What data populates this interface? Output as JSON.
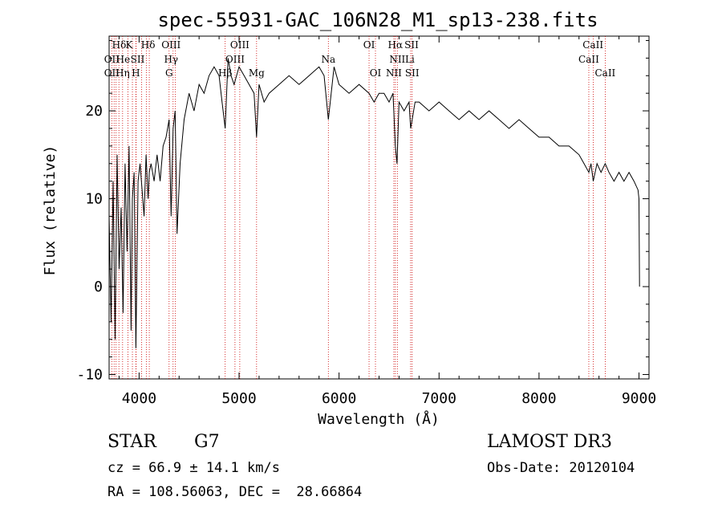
{
  "chart_data": {
    "type": "line",
    "title": "spec-55931-GAC_106N28_M1_sp13-238.fits",
    "xlabel": "Wavelength (Å)",
    "ylabel": "Flux (relative)",
    "xlim": [
      3700,
      9100
    ],
    "ylim": [
      -10.5,
      28.5
    ],
    "x_ticks": [
      4000,
      5000,
      6000,
      7000,
      8000,
      9000
    ],
    "y_ticks": [
      -10,
      0,
      10,
      20
    ],
    "series": [
      {
        "name": "flux",
        "x": [
          3700,
          3720,
          3740,
          3760,
          3780,
          3800,
          3820,
          3840,
          3860,
          3880,
          3900,
          3920,
          3933,
          3950,
          3968,
          3990,
          4010,
          4030,
          4050,
          4070,
          4090,
          4102,
          4120,
          4150,
          4180,
          4210,
          4240,
          4270,
          4300,
          4320,
          4340,
          4360,
          4380,
          4410,
          4450,
          4500,
          4550,
          4600,
          4650,
          4700,
          4750,
          4800,
          4830,
          4861,
          4890,
          4920,
          4950,
          5000,
          5050,
          5100,
          5150,
          5175,
          5200,
          5250,
          5300,
          5400,
          5500,
          5600,
          5700,
          5800,
          5850,
          5893,
          5950,
          6000,
          6100,
          6200,
          6300,
          6350,
          6400,
          6450,
          6500,
          6540,
          6563,
          6580,
          6600,
          6650,
          6700,
          6716,
          6731,
          6760,
          6800,
          6900,
          7000,
          7100,
          7200,
          7300,
          7400,
          7500,
          7600,
          7700,
          7800,
          7900,
          8000,
          8100,
          8200,
          8300,
          8400,
          8450,
          8498,
          8520,
          8542,
          8580,
          8620,
          8662,
          8700,
          8750,
          8800,
          8850,
          8900,
          8950,
          8990,
          9000,
          9005
        ],
        "y": [
          8,
          -4,
          12,
          -6,
          15,
          2,
          9,
          -3,
          14,
          4,
          16,
          -5,
          10,
          13,
          -7,
          12,
          14,
          11,
          8,
          15,
          10,
          13,
          14,
          12,
          15,
          12,
          16,
          17,
          19,
          8,
          18,
          20,
          6,
          14,
          19,
          22,
          20,
          23,
          22,
          24,
          25,
          24,
          21,
          18,
          26,
          24,
          23,
          25,
          24,
          23,
          22,
          17,
          23,
          21,
          22,
          23,
          24,
          23,
          24,
          25,
          24,
          19,
          25,
          23,
          22,
          23,
          22,
          21,
          22,
          22,
          21,
          22,
          16,
          14,
          21,
          20,
          21,
          18,
          19,
          21,
          21,
          20,
          21,
          20,
          19,
          20,
          19,
          20,
          19,
          18,
          19,
          18,
          17,
          17,
          16,
          16,
          15,
          14,
          13,
          14,
          12,
          14,
          13,
          14,
          13,
          12,
          13,
          12,
          13,
          12,
          11,
          10,
          0
        ]
      }
    ],
    "line_positions": [
      3727,
      3750,
      3770,
      3798,
      3835,
      3889,
      3933,
      3968,
      3970,
      4026,
      4072,
      4102,
      4300,
      4340,
      4363,
      4861,
      4959,
      5007,
      5175,
      5893,
      6300,
      6364,
      6548,
      6563,
      6583,
      6716,
      6731,
      8498,
      8542,
      8662
    ],
    "line_labels": [
      {
        "text": "Hδ",
        "x": 3800,
        "row": 1
      },
      {
        "text": "K",
        "x": 3900,
        "row": 1
      },
      {
        "text": "Hδ",
        "x": 4090,
        "row": 1
      },
      {
        "text": "OIII",
        "x": 4320,
        "row": 1
      },
      {
        "text": "OIII",
        "x": 5007,
        "row": 1
      },
      {
        "text": "OI",
        "x": 6300,
        "row": 1
      },
      {
        "text": "Hα",
        "x": 6563,
        "row": 1
      },
      {
        "text": "SII",
        "x": 6725,
        "row": 1
      },
      {
        "text": "CaII",
        "x": 8540,
        "row": 1
      },
      {
        "text": "OII",
        "x": 3727,
        "row": 2
      },
      {
        "text": "He",
        "x": 3840,
        "row": 2
      },
      {
        "text": "SII",
        "x": 3985,
        "row": 2
      },
      {
        "text": "Hγ",
        "x": 4320,
        "row": 2
      },
      {
        "text": "OIII",
        "x": 4959,
        "row": 2
      },
      {
        "text": "Na",
        "x": 5893,
        "row": 2
      },
      {
        "text": "NII",
        "x": 6583,
        "row": 2
      },
      {
        "text": "Li",
        "x": 6708,
        "row": 2
      },
      {
        "text": "CaII",
        "x": 8498,
        "row": 2
      },
      {
        "text": "OII",
        "x": 3727,
        "row": 3
      },
      {
        "text": "Hη",
        "x": 3835,
        "row": 3
      },
      {
        "text": "H",
        "x": 3968,
        "row": 3
      },
      {
        "text": "G",
        "x": 4300,
        "row": 3
      },
      {
        "text": "Hβ",
        "x": 4861,
        "row": 3
      },
      {
        "text": "Mg",
        "x": 5175,
        "row": 3
      },
      {
        "text": "OI",
        "x": 6364,
        "row": 3
      },
      {
        "text": "NII",
        "x": 6548,
        "row": 3
      },
      {
        "text": "SII",
        "x": 6731,
        "row": 3
      },
      {
        "text": "CaII",
        "x": 8662,
        "row": 3
      }
    ]
  },
  "info": {
    "object_class": "STAR",
    "subclass": "G7",
    "survey": "LAMOST DR3",
    "cz": "cz = 66.9 ± 14.1 km/s",
    "obs_date": "Obs-Date: 20120104",
    "coords": "RA = 108.56063, DEC =  28.66864"
  },
  "colors": {
    "line_marker": "#cc0000",
    "spectrum": "#000000"
  }
}
